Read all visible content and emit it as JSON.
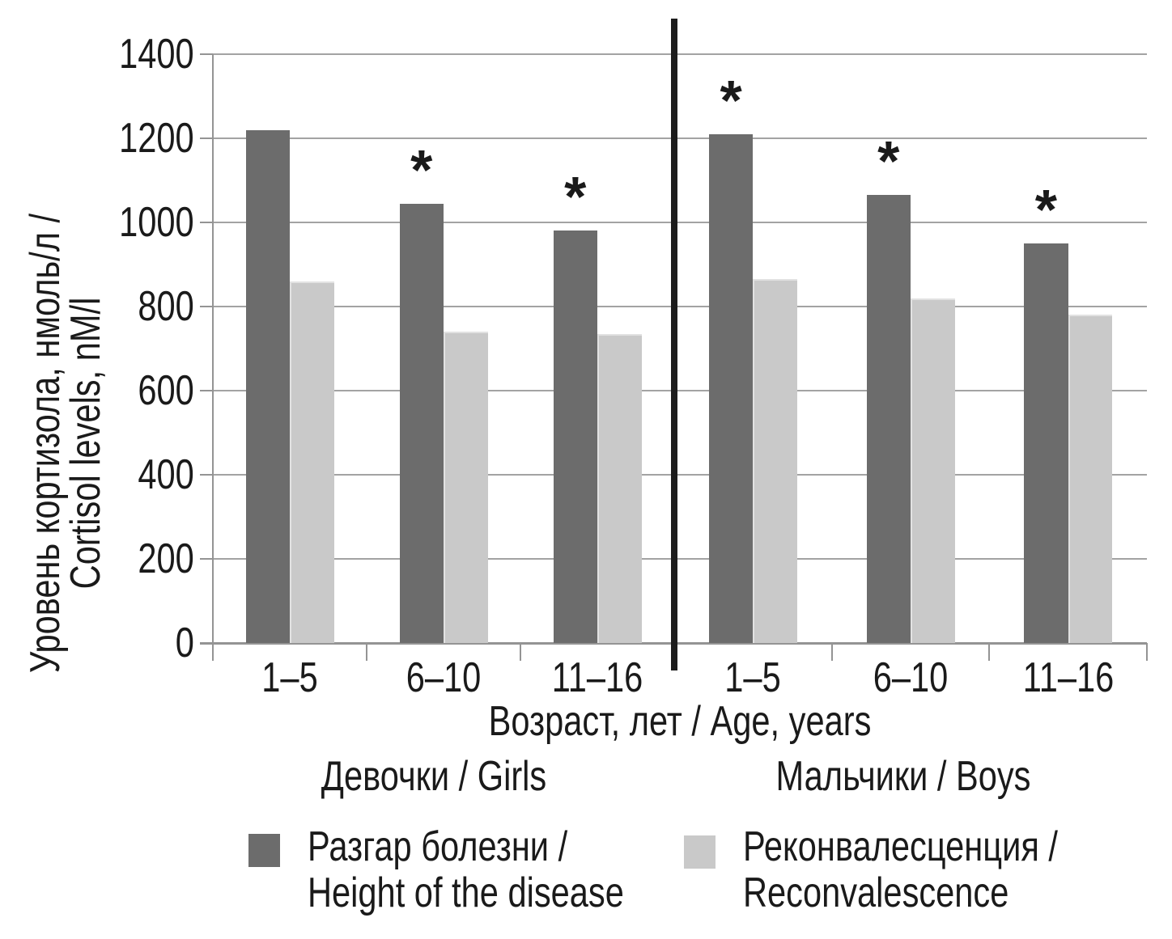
{
  "chart_data": {
    "type": "bar",
    "title": "",
    "ylabel_line1": "Уровень кортизола, нмоль/л /",
    "ylabel_line2": "Cortisol levels, nM/l",
    "xlabel": "Возраст, лет / Age, years",
    "ylim": [
      0,
      1400
    ],
    "ytick_step": 200,
    "y_ticks": [
      0,
      200,
      400,
      600,
      800,
      1000,
      1200,
      1400
    ],
    "categories": [
      "1–5",
      "6–10",
      "11–16"
    ],
    "grid": "horizontal",
    "legend_position": "bottom",
    "significance_marker": "*",
    "groups": [
      {
        "group": "Девочки / Girls",
        "slug": "girls",
        "series": [
          {
            "name": "Разгар болезни / Height of the disease",
            "slug": "height-of-disease",
            "values": [
              1220,
              1045,
              980
            ],
            "significant": [
              false,
              true,
              true
            ]
          },
          {
            "name": "Реконвалесценция / Reconvalescence",
            "slug": "reconvalescence",
            "values": [
              860,
              740,
              735
            ],
            "significant": [
              false,
              false,
              false
            ]
          }
        ]
      },
      {
        "group": "Мальчики / Boys",
        "slug": "boys",
        "series": [
          {
            "name": "Разгар болезни / Height of the disease",
            "slug": "height-of-disease",
            "values": [
              1210,
              1065,
              950
            ],
            "significant": [
              true,
              true,
              true
            ]
          },
          {
            "name": "Реконвалесценция / Reconvalescence",
            "slug": "reconvalescence",
            "values": [
              865,
              820,
              780
            ],
            "significant": [
              false,
              false,
              false
            ]
          }
        ]
      }
    ],
    "legend": [
      {
        "label_line1": "Разгар болезни /",
        "label_line2": "Height of the disease",
        "color": "#6c6c6c"
      },
      {
        "label_line1": "Реконвалесценция /",
        "label_line2": "Reconvalescence",
        "color": "#c9c9c9"
      }
    ],
    "colors": {
      "gridline": "#a3a3a3",
      "axis": "#949494",
      "divider": "#1c1c1c",
      "text": "#1a1a1a"
    }
  }
}
